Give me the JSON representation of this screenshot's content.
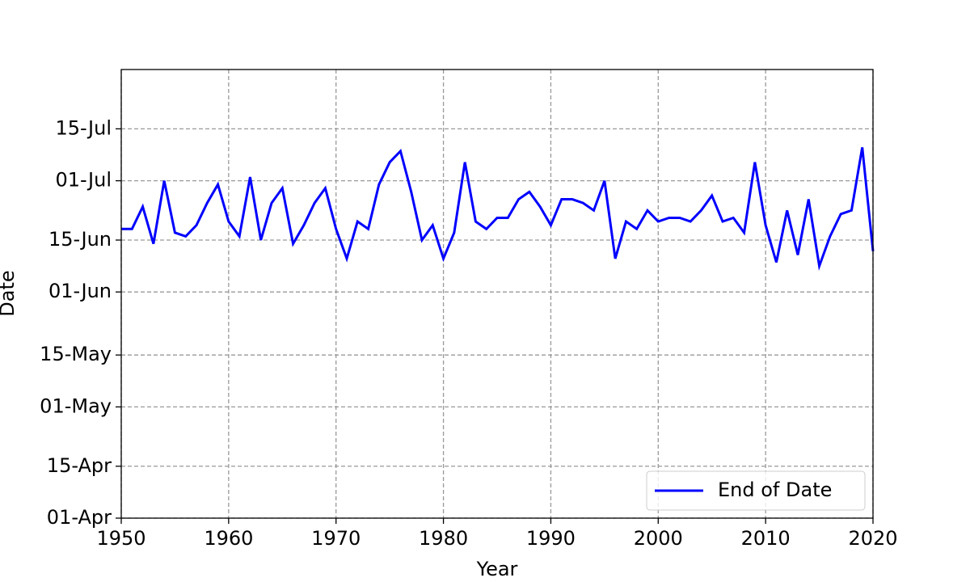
{
  "chart_data": {
    "type": "line",
    "xlabel": "Year",
    "ylabel": "Date",
    "x": [
      1950,
      1951,
      1952,
      1953,
      1954,
      1955,
      1956,
      1957,
      1958,
      1959,
      1960,
      1961,
      1962,
      1963,
      1964,
      1965,
      1966,
      1967,
      1968,
      1969,
      1970,
      1971,
      1972,
      1973,
      1974,
      1975,
      1976,
      1977,
      1978,
      1979,
      1980,
      1981,
      1982,
      1983,
      1984,
      1985,
      1986,
      1987,
      1988,
      1989,
      1990,
      1991,
      1992,
      1993,
      1994,
      1995,
      1996,
      1997,
      1998,
      1999,
      2000,
      2001,
      2002,
      2003,
      2004,
      2005,
      2006,
      2007,
      2008,
      2009,
      2010,
      2011,
      2012,
      2013,
      2014,
      2015,
      2016,
      2017,
      2018,
      2019,
      2020
    ],
    "series": [
      {
        "name": "End of Date",
        "color": "#0000ff",
        "values": [
          169,
          169,
          175,
          165,
          182,
          168,
          167,
          170,
          176,
          181,
          171,
          167,
          183,
          166,
          176,
          180,
          165,
          170,
          176,
          180,
          169,
          161,
          171,
          169,
          181,
          187,
          190,
          179,
          166,
          170,
          161,
          168,
          187,
          171,
          169,
          172,
          172,
          177,
          179,
          175,
          170,
          177,
          177,
          176,
          174,
          182,
          161,
          171,
          169,
          174,
          171,
          172,
          172,
          171,
          174,
          178,
          171,
          172,
          168,
          187,
          170,
          160,
          174,
          162,
          177,
          159,
          167,
          173,
          174,
          191,
          163
        ]
      }
    ],
    "xlim": [
      1950,
      2020
    ],
    "xticks": [
      1950,
      1960,
      1970,
      1980,
      1990,
      2000,
      2010,
      2020
    ],
    "ylim": [
      91,
      212
    ],
    "yticks": [
      {
        "value": 91,
        "label": "01-Apr"
      },
      {
        "value": 105,
        "label": "15-Apr"
      },
      {
        "value": 121,
        "label": "01-May"
      },
      {
        "value": 135,
        "label": "15-May"
      },
      {
        "value": 152,
        "label": "01-Jun"
      },
      {
        "value": 166,
        "label": "15-Jun"
      },
      {
        "value": 182,
        "label": "01-Jul"
      },
      {
        "value": 196,
        "label": "15-Jul"
      }
    ],
    "grid": true,
    "legend": "lower right"
  }
}
